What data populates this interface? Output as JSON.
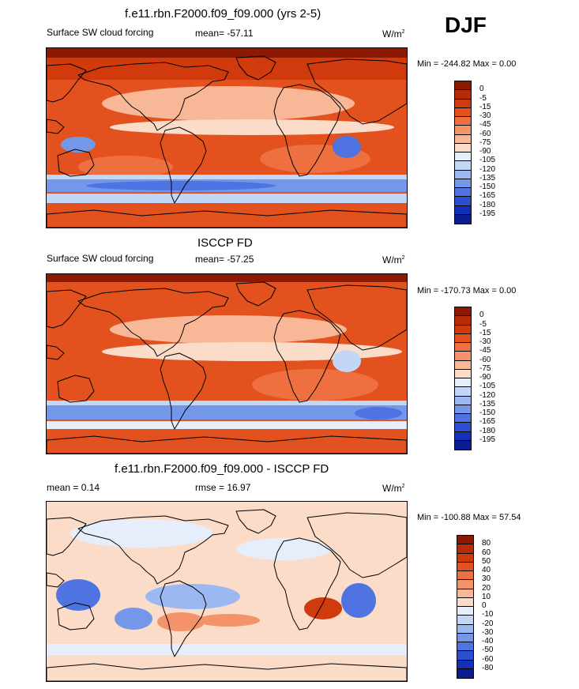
{
  "season": "DJF",
  "chart_data": [
    {
      "type": "heatmap",
      "title": "f.e11.rbn.F2000.f09_f09.000 (yrs 2-5)",
      "left_label": "Surface SW cloud forcing",
      "stat_label": "mean= -57.11",
      "units": "W/m",
      "units_sup": "2",
      "min_text": "Min = -244.82",
      "max_text": "Max =   0.00",
      "colorbar_levels": [
        "0",
        "-5",
        "-15",
        "-30",
        "-45",
        "-60",
        "-75",
        "-90",
        "-105",
        "-120",
        "-135",
        "-150",
        "-165",
        "-180",
        "-195"
      ],
      "colorbar_colors": [
        "#8c1a03",
        "#b72b06",
        "#d03a0c",
        "#e3521e",
        "#ee7040",
        "#f4936a",
        "#f8b898",
        "#fbdcc8",
        "#e6eefc",
        "#c2d6f8",
        "#9bb8f2",
        "#7597ea",
        "#4f73e0",
        "#2c4fd2",
        "#1530b8",
        "#0a1c90"
      ]
    },
    {
      "type": "heatmap",
      "title": "ISCCP FD",
      "left_label": "Surface SW cloud forcing",
      "stat_label": "mean= -57.25",
      "units": "W/m",
      "units_sup": "2",
      "min_text": "Min = -170.73",
      "max_text": "Max =   0.00",
      "colorbar_levels": [
        "0",
        "-5",
        "-15",
        "-30",
        "-45",
        "-60",
        "-75",
        "-90",
        "-105",
        "-120",
        "-135",
        "-150",
        "-165",
        "-180",
        "-195"
      ],
      "colorbar_colors": [
        "#8c1a03",
        "#b72b06",
        "#d03a0c",
        "#e3521e",
        "#ee7040",
        "#f4936a",
        "#f8b898",
        "#fbdcc8",
        "#e6eefc",
        "#c2d6f8",
        "#9bb8f2",
        "#7597ea",
        "#4f73e0",
        "#2c4fd2",
        "#1530b8",
        "#0a1c90"
      ]
    },
    {
      "type": "heatmap",
      "title": "f.e11.rbn.F2000.f09_f09.000 - ISCCP FD",
      "left_label": "mean =   0.14",
      "stat_label": "rmse =  16.97",
      "units": "W/m",
      "units_sup": "2",
      "min_text": "Min = -100.88",
      "max_text": "Max =  57.54",
      "colorbar_levels": [
        "80",
        "60",
        "50",
        "40",
        "30",
        "20",
        "10",
        "0",
        "-10",
        "-20",
        "-30",
        "-40",
        "-50",
        "-60",
        "-80"
      ],
      "colorbar_colors": [
        "#8c1a03",
        "#b72b06",
        "#d03a0c",
        "#e3521e",
        "#ee7040",
        "#f4936a",
        "#f8b898",
        "#fbdcc8",
        "#e6eefc",
        "#c2d6f8",
        "#9bb8f2",
        "#7597ea",
        "#4f73e0",
        "#2c4fd2",
        "#1530b8",
        "#0a1c90"
      ]
    }
  ]
}
